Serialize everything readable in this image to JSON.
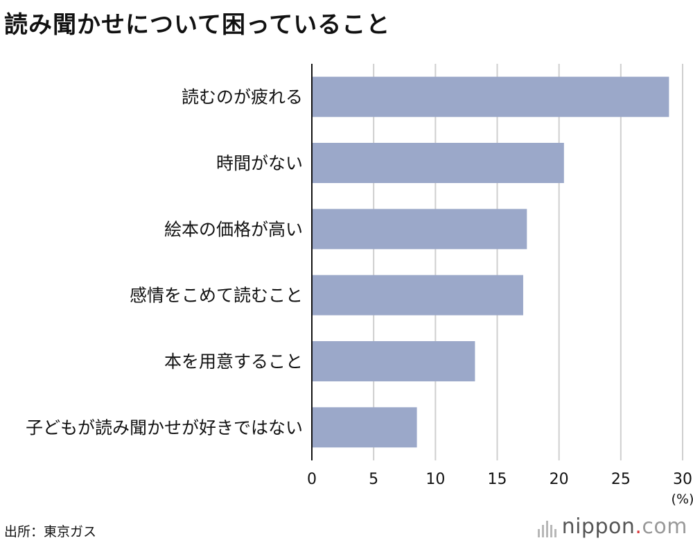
{
  "title": "読み聞かせについて困っていること",
  "source": "出所：東京ガス",
  "brand": {
    "name": "nippon",
    "dot": ".",
    "tld": "com",
    "logo_icon": "nippon-bars-icon"
  },
  "colors": {
    "bar": "#9ba8c9",
    "grid": "#cfcfcf",
    "axis": "#111111"
  },
  "chart_data": {
    "type": "bar",
    "orientation": "horizontal",
    "title": "読み聞かせについて困っていること",
    "categories": [
      "読むのが疲れる",
      "時間がない",
      "絵本の価格が高い",
      "感情をこめて読むこと",
      "本を用意すること",
      "子どもが読み聞かせが好きではない"
    ],
    "values": [
      28.9,
      20.4,
      17.4,
      17.1,
      13.2,
      8.5
    ],
    "xlim": [
      0,
      30
    ],
    "xticks": [
      "0",
      "5",
      "10",
      "15",
      "20",
      "25",
      "30"
    ],
    "xunit": "(%)",
    "grid": true
  }
}
